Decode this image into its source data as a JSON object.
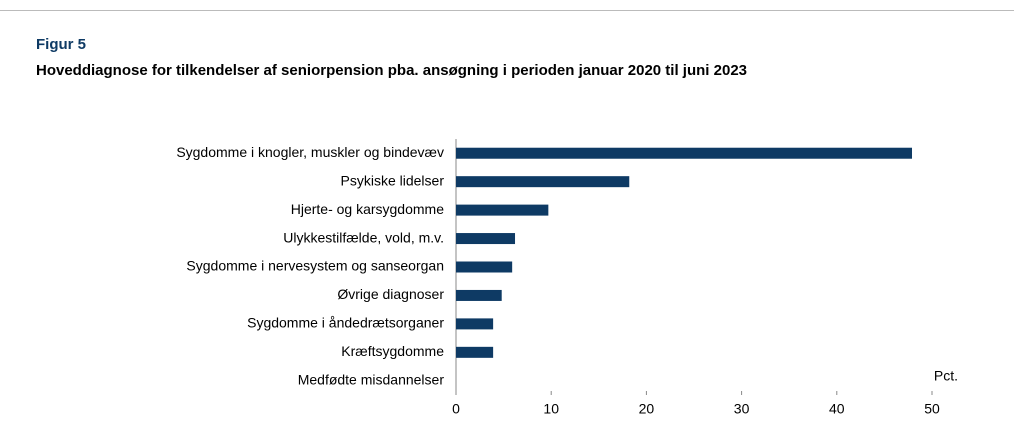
{
  "chart_data": {
    "type": "barh",
    "figure_label": "Figur 5",
    "title": "Hoveddiagnose for tilkendelser af seniorpension pba. ansøgning i perioden januar 2020 til juni 2023",
    "x_label": "Pct.",
    "categories": [
      "Sygdomme i knogler, muskler og bindevæv",
      "Psykiske lidelser",
      "Hjerte- og karsygdomme",
      "Ulykkestilfælde, vold, m.v.",
      "Sygdomme i nervesystem og sanseorgan",
      "Øvrige diagnoser",
      "Sygdomme i åndedrætsorganer",
      "Kræftsygdomme",
      "Medfødte misdannelser"
    ],
    "values": [
      47.9,
      18.2,
      9.7,
      6.2,
      5.9,
      4.8,
      3.9,
      3.9,
      0
    ],
    "color": "#0e3a64",
    "xlim": [
      0,
      50
    ],
    "xticks": [
      0,
      10,
      20,
      30,
      40,
      50
    ],
    "grid": false
  }
}
